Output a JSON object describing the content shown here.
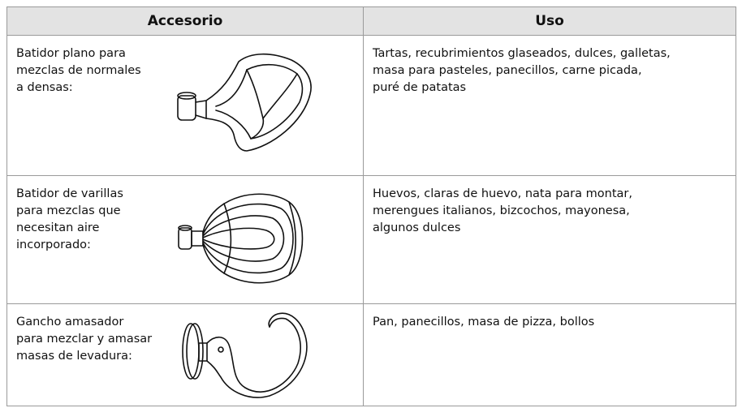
{
  "table": {
    "header": [
      "Accesorio",
      "Uso"
    ],
    "rows": [
      [
        [
          "Batidor plano para",
          "mezclas de normales",
          "a densas:"
        ],
        [
          "Tartas, recubrimientos glaseados, dulces, galletas,",
          "masa para pasteles, panecillos, carne picada,",
          "puré de patatas"
        ]
      ],
      [
        [
          "Batidor de varillas",
          "para mezclas que",
          "necesitan aire",
          "incorporado:"
        ],
        [
          "Huevos, claras de huevo, nata para montar,",
          "merengues italianos, bizcochos, mayonesa,",
          "algunos dulces"
        ]
      ],
      [
        [
          "Gancho amasador",
          "para mezclar y amasar",
          "masas de levadura:"
        ],
        [
          "Pan, panecillos, masa de pizza, bollos"
        ]
      ]
    ]
  }
}
